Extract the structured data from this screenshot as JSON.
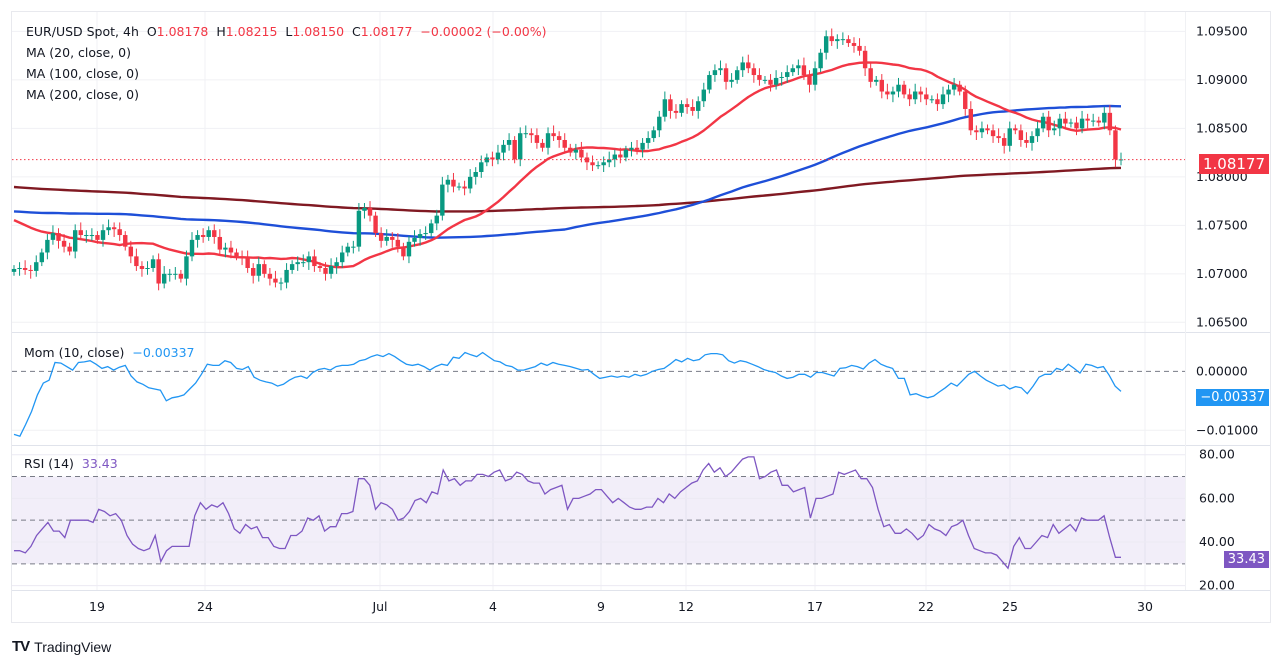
{
  "chart_data": [
    {
      "type": "candlestick",
      "title": "EUR/USD Spot, 4h",
      "ohlc_readout": {
        "open": "1.08178",
        "high": "1.08215",
        "low": "1.08150",
        "close": "1.08177",
        "change": "−0.00002 (−0.00%)"
      },
      "ylim": [
        1.064,
        1.097
      ],
      "y_ticks": [
        "1.09500",
        "1.09000",
        "1.08500",
        "1.08000",
        "1.07500",
        "1.07000",
        "1.06500"
      ],
      "y_tick_values": [
        1.095,
        1.09,
        1.085,
        1.08,
        1.075,
        1.07,
        1.065
      ],
      "current_price": 1.08177,
      "current_price_label": "1.08177",
      "x_ticks": [
        "19",
        "24",
        "Jul",
        "4",
        "9",
        "12",
        "17",
        "22",
        "25",
        "30"
      ],
      "closes": [
        1.0705,
        1.0706,
        1.0704,
        1.0703,
        1.0712,
        1.0722,
        1.0735,
        1.0742,
        1.0734,
        1.0728,
        1.0723,
        1.0745,
        1.074,
        1.074,
        1.074,
        1.0735,
        1.0745,
        1.0748,
        1.0746,
        1.074,
        1.0728,
        1.0718,
        1.0708,
        1.0705,
        1.0706,
        1.0715,
        1.069,
        1.07,
        1.07,
        1.07,
        1.0695,
        1.0718,
        1.0735,
        1.074,
        1.0738,
        1.0745,
        1.0738,
        1.0725,
        1.0727,
        1.0722,
        1.0718,
        1.0716,
        1.0706,
        1.0698,
        1.071,
        1.07,
        1.0695,
        1.0691,
        1.0691,
        1.0704,
        1.071,
        1.0712,
        1.0712,
        1.0718,
        1.0708,
        1.0706,
        1.07,
        1.0708,
        1.0712,
        1.0722,
        1.0728,
        1.0728,
        1.0765,
        1.0768,
        1.076,
        1.0742,
        1.0734,
        1.0738,
        1.0735,
        1.0728,
        1.0718,
        1.0733,
        1.0737,
        1.0741,
        1.0742,
        1.0752,
        1.076,
        1.0792,
        1.0797,
        1.079,
        1.079,
        1.0788,
        1.08,
        1.0805,
        1.0815,
        1.082,
        1.0818,
        1.0825,
        1.0833,
        1.0838,
        1.0818,
        1.0845,
        1.0845,
        1.0843,
        1.0835,
        1.083,
        1.0845,
        1.0842,
        1.0838,
        1.083,
        1.0825,
        1.0828,
        1.082,
        1.0815,
        1.0812,
        1.0812,
        1.0815,
        1.0818,
        1.0823,
        1.082,
        1.0828,
        1.083,
        1.0828,
        1.0835,
        1.084,
        1.0848,
        1.0862,
        1.088,
        1.0868,
        1.0866,
        1.0875,
        1.0872,
        1.0868,
        1.0878,
        1.089,
        1.0905,
        1.091,
        1.0912,
        1.0898,
        1.09,
        1.091,
        1.0918,
        1.0912,
        1.0905,
        1.09,
        1.09,
        1.0895,
        1.0902,
        1.0903,
        1.0908,
        1.0912,
        1.0915,
        1.0905,
        1.0895,
        1.0912,
        1.0928,
        1.0945,
        1.094,
        1.0942,
        1.0942,
        1.0938,
        1.0935,
        1.093,
        1.0912,
        1.0898,
        1.09,
        1.0888,
        1.0885,
        1.0888,
        1.0895,
        1.0885,
        1.088,
        1.0888,
        1.0885,
        1.088,
        1.088,
        1.0875,
        1.0885,
        1.089,
        1.0895,
        1.0888,
        1.087,
        1.0848,
        1.0846,
        1.085,
        1.0848,
        1.0842,
        1.084,
        1.0832,
        1.085,
        1.0848,
        1.0838,
        1.0835,
        1.0842,
        1.085,
        1.0862,
        1.0848,
        1.085,
        1.086,
        1.0855,
        1.0856,
        1.085,
        1.086,
        1.0858,
        1.0858,
        1.0856,
        1.0866,
        1.0848,
        1.0818,
        1.0818
      ],
      "series": [
        {
          "name": "MA (20, close, 0)",
          "color": "#f23645"
        },
        {
          "name": "MA (100, close, 0)",
          "color": "#1e4fd8"
        },
        {
          "name": "MA (200, close, 0)",
          "color": "#801922"
        }
      ],
      "up_color": "#089981",
      "down_color": "#f23645"
    },
    {
      "type": "line",
      "title": "Mom (10, close)",
      "value_label": "−0.00337",
      "ylim": [
        -0.0125,
        0.0065
      ],
      "y_ticks": [
        "0.00000",
        "−0.01000"
      ],
      "y_tick_values": [
        0,
        -0.01
      ],
      "color": "#2196f3",
      "values": [
        -0.0107,
        -0.011,
        -0.009,
        -0.0068,
        -0.004,
        -0.002,
        -0.0015,
        0.0015,
        0.0014,
        0.0008,
        0.0002,
        0.0015,
        0.0016,
        0.0018,
        0.0012,
        0.0005,
        0.0008,
        0.0002,
        0.0007,
        0.001,
        -0.0008,
        -0.0018,
        -0.0022,
        -0.0028,
        -0.003,
        -0.0032,
        -0.005,
        -0.0045,
        -0.0043,
        -0.004,
        -0.003,
        -0.002,
        -0.0005,
        0.0012,
        0.001,
        0.001,
        0.0018,
        0.0015,
        0.0005,
        0.0003,
        0.0008,
        -0.001,
        -0.0015,
        -0.0018,
        -0.002,
        -0.0025,
        -0.0022,
        -0.0015,
        -0.001,
        -0.0008,
        -0.0012,
        -0.0002,
        0.0003,
        0.0005,
        0.0002,
        0.0008,
        0.001,
        0.001,
        0.0012,
        0.0018,
        0.002,
        0.0025,
        0.0028,
        0.0025,
        0.003,
        0.0025,
        0.0018,
        0.0012,
        0.001,
        0.0012,
        0.0008,
        0.0002,
        0.0008,
        0.0012,
        0.001,
        0.0024,
        0.0022,
        0.0032,
        0.0028,
        0.0025,
        0.0032,
        0.0025,
        0.0018,
        0.0016,
        0.001,
        0.0008,
        0.0002,
        0.0002,
        0.0005,
        0.0008,
        0.0014,
        0.001,
        0.0015,
        0.0012,
        0.001,
        0.0008,
        0.0005,
        0.0002,
        0.0003,
        -0.0005,
        -0.0012,
        -0.001,
        -0.0008,
        -0.001,
        -0.0008,
        -0.001,
        -0.0005,
        -0.0008,
        -0.0005,
        0.0,
        0.0003,
        0.0005,
        0.0012,
        0.002,
        0.0016,
        0.0022,
        0.0018,
        0.002,
        0.0028,
        0.003,
        0.003,
        0.0028,
        0.0018,
        0.0014,
        0.0018,
        0.0016,
        0.0012,
        0.0008,
        0.0003,
        0.0,
        -0.0002,
        -0.0008,
        -0.0012,
        -0.001,
        -0.0005,
        -0.0005,
        -0.001,
        -0.0002,
        -0.0002,
        -0.0005,
        -0.0008,
        0.0005,
        0.0006,
        0.001,
        0.0008,
        0.0004,
        0.0014,
        0.002,
        0.0012,
        0.0008,
        0.0005,
        -0.0012,
        -0.0012,
        -0.004,
        -0.0038,
        -0.0042,
        -0.0045,
        -0.0042,
        -0.0035,
        -0.0028,
        -0.002,
        -0.0025,
        -0.0015,
        -0.0005,
        0.0,
        -0.0008,
        -0.0015,
        -0.002,
        -0.0025,
        -0.0023,
        -0.003,
        -0.0026,
        -0.0028,
        -0.0038,
        -0.0025,
        -0.001,
        -0.0005,
        -0.0005,
        0.0005,
        0.0002,
        0.0012,
        0.0005,
        -0.0003,
        0.0012,
        0.001,
        0.0006,
        0.0008,
        -0.0007,
        -0.0025,
        -0.0034
      ]
    },
    {
      "type": "line",
      "title": "RSI (14)",
      "value_label": "33.43",
      "ylim": [
        18,
        84
      ],
      "y_ticks": [
        "80.00",
        "60.00",
        "40.00",
        "20.00"
      ],
      "y_tick_values": [
        80,
        60,
        40,
        20
      ],
      "band": [
        30,
        70
      ],
      "midline": 50,
      "color": "#7e57c2",
      "values": [
        36,
        36,
        35,
        38,
        43,
        46,
        49,
        45,
        45,
        42,
        50,
        50,
        50,
        50,
        49,
        55,
        54,
        52,
        53,
        50,
        43,
        39,
        37,
        36,
        37,
        43,
        31,
        36,
        38,
        38,
        38,
        38,
        52,
        58,
        55,
        57,
        56,
        58,
        53,
        46,
        44,
        48,
        46,
        47,
        42,
        42,
        38,
        37,
        37,
        43,
        43,
        45,
        51,
        50,
        52,
        45,
        47,
        47,
        53,
        53,
        54,
        69,
        69,
        66,
        55,
        58,
        57,
        55,
        50,
        51,
        54,
        59,
        60,
        58,
        63,
        62,
        73,
        68,
        69,
        66,
        68,
        68,
        71,
        71,
        70,
        72,
        73,
        68,
        69,
        72,
        71,
        68,
        67,
        67,
        62,
        64,
        65,
        66,
        55,
        60,
        60,
        61,
        62,
        64,
        64,
        61,
        58,
        60,
        58,
        56,
        55,
        55,
        56,
        56,
        60,
        58,
        62,
        60,
        63,
        65,
        67,
        68,
        73,
        76,
        72,
        74,
        70,
        72,
        75,
        78,
        79,
        79,
        69,
        70,
        72,
        73,
        66,
        66,
        63,
        64,
        65,
        51,
        60,
        60,
        61,
        62,
        72,
        71,
        72,
        73,
        69,
        69,
        65,
        55,
        47,
        48,
        44,
        44,
        46,
        44,
        41,
        43,
        48,
        46,
        45,
        43,
        47,
        48,
        50,
        43,
        37,
        36,
        35,
        35,
        34,
        31,
        28,
        38,
        42,
        37,
        37,
        40,
        43,
        42,
        48,
        44,
        46,
        48,
        45,
        51,
        50,
        50,
        50,
        52,
        42,
        33,
        33
      ]
    }
  ],
  "legend": {
    "symbol": "EUR/USD Spot, 4h",
    "open_prefix": "O",
    "high_prefix": "H",
    "low_prefix": "L",
    "close_prefix": "C",
    "ma20": "MA (20, close, 0)",
    "ma100": "MA (100, close, 0)",
    "ma200": "MA (200, close, 0)",
    "mom": "Mom (10, close)",
    "rsi": "RSI (14)"
  },
  "footer": {
    "brand": "TradingView",
    "logo": "TV"
  }
}
